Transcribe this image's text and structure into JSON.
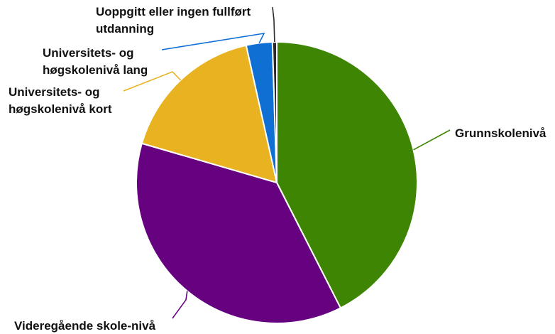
{
  "chart_data": {
    "type": "pie",
    "slices": [
      {
        "label": "Grunnskolenivå",
        "value": 42.5,
        "color": "#3d8503"
      },
      {
        "label": "Videregående skole-nivå",
        "value": 37.0,
        "color": "#660280"
      },
      {
        "label": "Universitets- og høgskolenivå kort",
        "value": 17.0,
        "color": "#e9b221"
      },
      {
        "label": "Universitets- og høgskolenivå lang",
        "value": 3.0,
        "color": "#0f6fd3"
      },
      {
        "label": "Uoppgitt eller ingen fullført utdanning",
        "value": 0.5,
        "color": "#2a2a2a"
      }
    ],
    "label_lines": [
      [
        "Grunnskolenivå"
      ],
      [
        "Videregående skole-nivå"
      ],
      [
        "Universitets- og",
        "høgskolenivå kort"
      ],
      [
        "Universitets- og",
        "høgskolenivå lang"
      ],
      [
        "Uoppgitt eller ingen fullført",
        "utdanning"
      ]
    ],
    "start": "12 o'clock",
    "direction": "clockwise",
    "legend": "none"
  }
}
